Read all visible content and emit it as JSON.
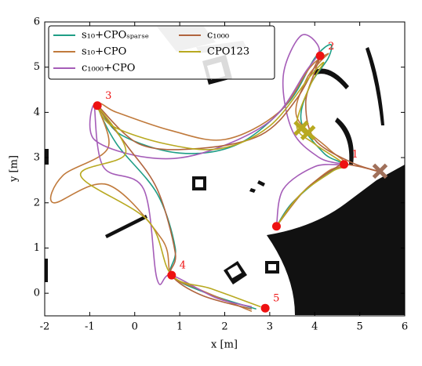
{
  "chart_data": {
    "type": "line",
    "xlabel": "x [m]",
    "ylabel": "y [m]",
    "xlim": [
      -2,
      6
    ],
    "ylim": [
      -0.5,
      6
    ],
    "xticks": [
      -2,
      -1,
      0,
      1,
      2,
      3,
      4,
      5,
      6
    ],
    "yticks": [
      0,
      1,
      2,
      3,
      4,
      5,
      6
    ],
    "legend": "upper left",
    "series": [
      {
        "name": "s₁₀+CPOₛₚₐᵣₛₑ",
        "color": "#1f9e86",
        "x": [
          3.15,
          3.5,
          4.2,
          4.6,
          4.2,
          3.7,
          3.9,
          4.3,
          4.35,
          4.0,
          3.4,
          2.3,
          1.0,
          -0.3,
          -0.8,
          -0.4,
          0.5,
          0.9,
          0.82,
          1.6,
          2.7
        ],
        "values": [
          1.48,
          2.0,
          2.6,
          2.85,
          3.1,
          3.8,
          4.6,
          5.2,
          5.5,
          5.2,
          4.2,
          3.3,
          3.1,
          3.5,
          4.1,
          3.3,
          2.2,
          1.0,
          0.4,
          0.0,
          -0.35
        ]
      },
      {
        "name": "s₁₀+CPO",
        "color": "#c07a3c",
        "x": [
          3.15,
          3.6,
          4.3,
          4.7,
          4.3,
          3.6,
          3.8,
          4.1,
          4.3,
          3.9,
          3.2,
          2.0,
          0.8,
          -0.4,
          -0.8,
          -0.6,
          -1.6,
          -1.8,
          -0.6,
          0.6,
          0.82,
          1.4,
          2.6
        ],
        "values": [
          1.48,
          2.1,
          2.7,
          2.85,
          3.2,
          3.9,
          4.7,
          5.1,
          5.3,
          5.0,
          4.0,
          3.4,
          3.6,
          4.0,
          4.15,
          3.2,
          2.6,
          2.0,
          2.4,
          1.2,
          0.4,
          0.1,
          -0.4
        ]
      },
      {
        "name": "c₁₀₀₀+CPO",
        "color": "#a55db8",
        "x": [
          3.15,
          3.3,
          4.0,
          4.6,
          4.1,
          3.5,
          3.3,
          3.7,
          4.1,
          3.8,
          3.0,
          1.5,
          0.3,
          -0.9,
          -0.9,
          -0.7,
          0.2,
          0.5,
          0.82,
          1.8,
          2.6
        ],
        "values": [
          1.48,
          2.3,
          2.8,
          2.85,
          3.0,
          3.6,
          4.8,
          5.7,
          5.4,
          4.9,
          3.8,
          3.1,
          3.0,
          3.4,
          4.15,
          2.8,
          2.3,
          0.3,
          0.4,
          -0.1,
          -0.3
        ]
      },
      {
        "name": "c₁₀₀₀",
        "color": "#b0643e",
        "x": [
          3.15,
          3.8,
          4.5,
          4.65,
          5.0,
          5.4,
          4.8,
          4.0,
          3.8,
          4.0,
          4.12,
          3.6,
          2.8,
          1.4,
          0.1,
          -0.83,
          -0.2,
          0.5,
          0.9,
          0.82,
          1.5,
          2.6
        ],
        "values": [
          1.48,
          2.3,
          2.8,
          2.85,
          2.8,
          2.7,
          2.9,
          3.4,
          4.2,
          4.9,
          5.25,
          4.3,
          3.5,
          3.2,
          3.3,
          4.15,
          3.3,
          2.3,
          0.9,
          0.4,
          -0.05,
          -0.35
        ]
      },
      {
        "name": "CPO123",
        "color": "#b8a920",
        "x": [
          3.15,
          3.7,
          4.4,
          4.65,
          4.0,
          3.6,
          3.9,
          4.2,
          3.9,
          3.0,
          1.9,
          0.7,
          -0.5,
          -0.83,
          -0.2,
          -1.2,
          0.3,
          0.82,
          1.7,
          2.8
        ],
        "values": [
          1.48,
          2.2,
          2.7,
          2.85,
          3.3,
          3.7,
          4.6,
          5.1,
          4.8,
          3.7,
          3.2,
          3.3,
          3.7,
          4.15,
          3.1,
          2.6,
          1.6,
          0.4,
          0.1,
          -0.3
        ]
      }
    ],
    "waypoints": {
      "color": "#ee1111",
      "x": [
        4.65,
        4.12,
        -0.83,
        0.82,
        2.9,
        3.15
      ],
      "y": [
        2.85,
        5.25,
        4.15,
        0.4,
        -0.33,
        1.48
      ],
      "labels": [
        "1",
        "2",
        "3",
        "4",
        "5",
        null
      ]
    },
    "markers": [
      {
        "x": 3.7,
        "y": 3.65,
        "color": "#b8a920"
      },
      {
        "x": 3.85,
        "y": 3.55,
        "color": "#b8a920"
      },
      {
        "x": 5.45,
        "y": 2.7,
        "color": "#a0705a"
      }
    ]
  }
}
